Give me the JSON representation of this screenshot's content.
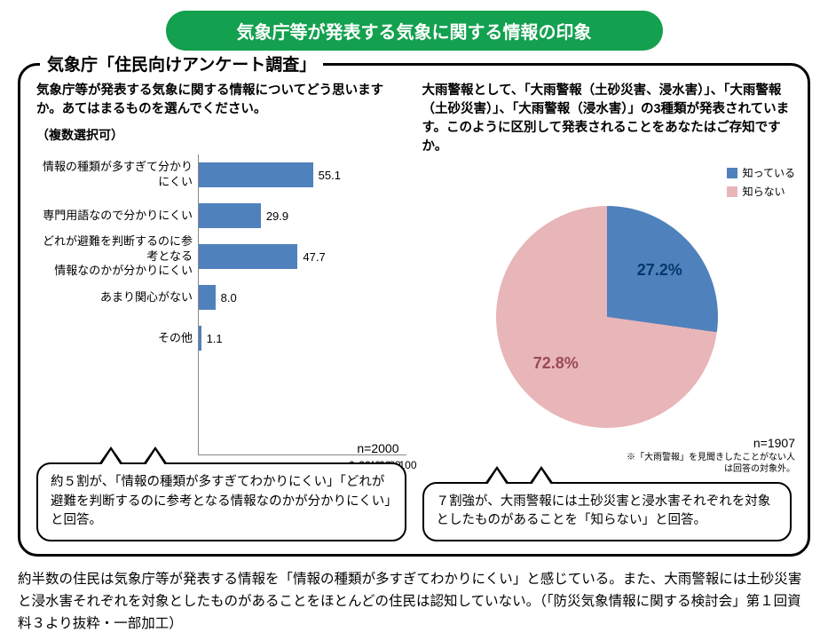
{
  "title": "気象庁等が発表する気象に関する情報の印象",
  "panel_legend": "気象庁「住民向けアンケート調査」",
  "colors": {
    "title_bg": "#13a04f",
    "bar": "#4f81bd",
    "pie_know": "#4f81bd",
    "pie_notknow": "#e8b5b8"
  },
  "bar_chart": {
    "type": "bar",
    "question": "気象庁等が発表する気象に関する情報についてどう思いますか。あてはまるものを選んでください。",
    "sub": "（複数選択可）",
    "categories": [
      "情報の種類が多すぎて分かりにくい",
      "専門用語なので分かりにくい",
      "どれが避難を判断するのに参考となる\n情報なのかが分かりにくい",
      "あまり関心がない",
      "その他"
    ],
    "values": [
      55.1,
      29.9,
      47.7,
      8.0,
      1.1
    ],
    "xlim": [
      0,
      100
    ],
    "xtick_step": 20,
    "xticks": [
      "0",
      "20",
      "40",
      "60",
      "80",
      "100"
    ],
    "bar_color": "#4f81bd",
    "n_label": "n=2000",
    "font_size_label": 13,
    "callout": "約５割が、「情報の種類が多すぎてわかりにくい」「どれが避難を判断するのに参考となる情報なのかが分かりにくい」と回答。"
  },
  "pie_chart": {
    "type": "pie",
    "question": "大雨警報として、「大雨警報（土砂災害、浸水害）」、「大雨警報（土砂災害）」、「大雨警報（浸水害）」の3種類が発表されています。このように区別して発表されることをあなたはご存知ですか。",
    "slices": [
      {
        "label": "知っている",
        "value": 27.2,
        "color": "#4f81bd",
        "display": "27.2%"
      },
      {
        "label": "知らない",
        "value": 72.8,
        "color": "#e8b5b8",
        "display": "72.8%"
      }
    ],
    "n_label": "n=1907",
    "note": "※「大雨警報」を見聞きしたことがない人\nは回答の対象外。",
    "callout": "７割強が、大雨警報には土砂災害と浸水害それぞれを対象としたものがあることを「知らない」と回答。"
  },
  "bottom_text": "約半数の住民は気象庁等が発表する情報を「情報の種類が多すぎてわかりにくい」と感じている。また、大雨警報には土砂災害と浸水害それぞれを対象としたものがあることをほとんどの住民は認知していない。（「防災気象情報に関する検討会」第１回資料３より抜粋・一部加工）"
}
